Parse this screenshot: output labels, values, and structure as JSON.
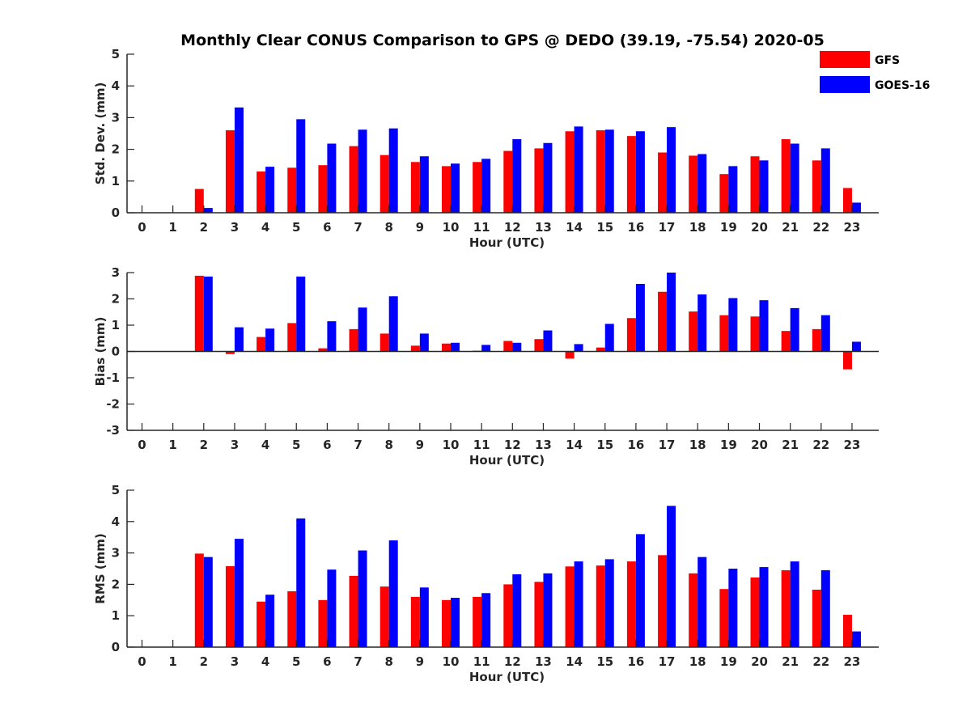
{
  "chart_data": {
    "type": "bar",
    "title": "Monthly Clear CONUS Comparison to GPS @ DEDO (39.19, -75.54) 2020-05",
    "categories": [
      "0",
      "1",
      "2",
      "3",
      "4",
      "5",
      "6",
      "7",
      "8",
      "9",
      "10",
      "11",
      "12",
      "13",
      "14",
      "15",
      "16",
      "17",
      "18",
      "19",
      "20",
      "21",
      "22",
      "23"
    ],
    "legend": {
      "placement": "top-right",
      "entries": [
        {
          "name": "GFS",
          "color": "#ff0000"
        },
        {
          "name": "GOES-16",
          "color": "#0000ff"
        }
      ]
    },
    "panels": [
      {
        "id": "std",
        "ylabel": "Std. Dev. (mm)",
        "xlabel": "Hour (UTC)",
        "ylim": [
          0,
          5
        ],
        "yticks": [
          0,
          1,
          2,
          3,
          4,
          5
        ],
        "series": [
          {
            "name": "GFS",
            "color": "#ff0000",
            "values": [
              null,
              null,
              0.75,
              2.6,
              1.3,
              1.42,
              1.5,
              2.1,
              1.82,
              1.6,
              1.47,
              1.6,
              1.95,
              2.03,
              2.57,
              2.6,
              2.42,
              1.9,
              1.8,
              1.22,
              1.78,
              2.32,
              1.65,
              0.78
            ]
          },
          {
            "name": "GOES-16",
            "color": "#0000ff",
            "values": [
              null,
              null,
              0.15,
              3.32,
              1.45,
              2.95,
              2.18,
              2.62,
              2.66,
              1.78,
              1.55,
              1.7,
              2.32,
              2.2,
              2.72,
              2.62,
              2.57,
              2.7,
              1.85,
              1.47,
              1.65,
              2.18,
              2.03,
              0.32
            ]
          }
        ]
      },
      {
        "id": "bias",
        "ylabel": "Bias (mm)",
        "xlabel": "Hour (UTC)",
        "ylim": [
          -3,
          3
        ],
        "yticks": [
          -3,
          -2,
          -1,
          0,
          1,
          2,
          3
        ],
        "series": [
          {
            "name": "GFS",
            "color": "#ff0000",
            "values": [
              null,
              null,
              2.88,
              -0.1,
              0.55,
              1.08,
              0.12,
              0.85,
              0.68,
              0.22,
              0.3,
              0.03,
              0.4,
              0.47,
              -0.27,
              0.15,
              1.27,
              2.27,
              1.52,
              1.38,
              1.33,
              0.78,
              0.85,
              -0.68
            ]
          },
          {
            "name": "GOES-16",
            "color": "#0000ff",
            "values": [
              null,
              null,
              2.85,
              0.92,
              0.87,
              2.85,
              1.15,
              1.67,
              2.1,
              0.68,
              0.33,
              0.25,
              0.33,
              0.8,
              0.28,
              1.05,
              2.57,
              3.0,
              2.17,
              2.03,
              1.95,
              1.65,
              1.38,
              0.37
            ]
          }
        ]
      },
      {
        "id": "rms",
        "ylabel": "RMS (mm)",
        "xlabel": "Hour (UTC)",
        "ylim": [
          0,
          5
        ],
        "yticks": [
          0,
          1,
          2,
          3,
          4,
          5
        ],
        "series": [
          {
            "name": "GFS",
            "color": "#ff0000",
            "values": [
              null,
              null,
              2.98,
              2.58,
              1.45,
              1.78,
              1.5,
              2.27,
              1.93,
              1.6,
              1.5,
              1.6,
              2.0,
              2.08,
              2.57,
              2.6,
              2.73,
              2.93,
              2.35,
              1.85,
              2.22,
              2.45,
              1.83,
              1.03
            ]
          },
          {
            "name": "GOES-16",
            "color": "#0000ff",
            "values": [
              null,
              null,
              2.87,
              3.45,
              1.67,
              4.1,
              2.47,
              3.08,
              3.4,
              1.9,
              1.57,
              1.72,
              2.32,
              2.35,
              2.73,
              2.8,
              3.6,
              4.5,
              2.87,
              2.5,
              2.55,
              2.73,
              2.45,
              0.5
            ]
          }
        ]
      }
    ]
  }
}
